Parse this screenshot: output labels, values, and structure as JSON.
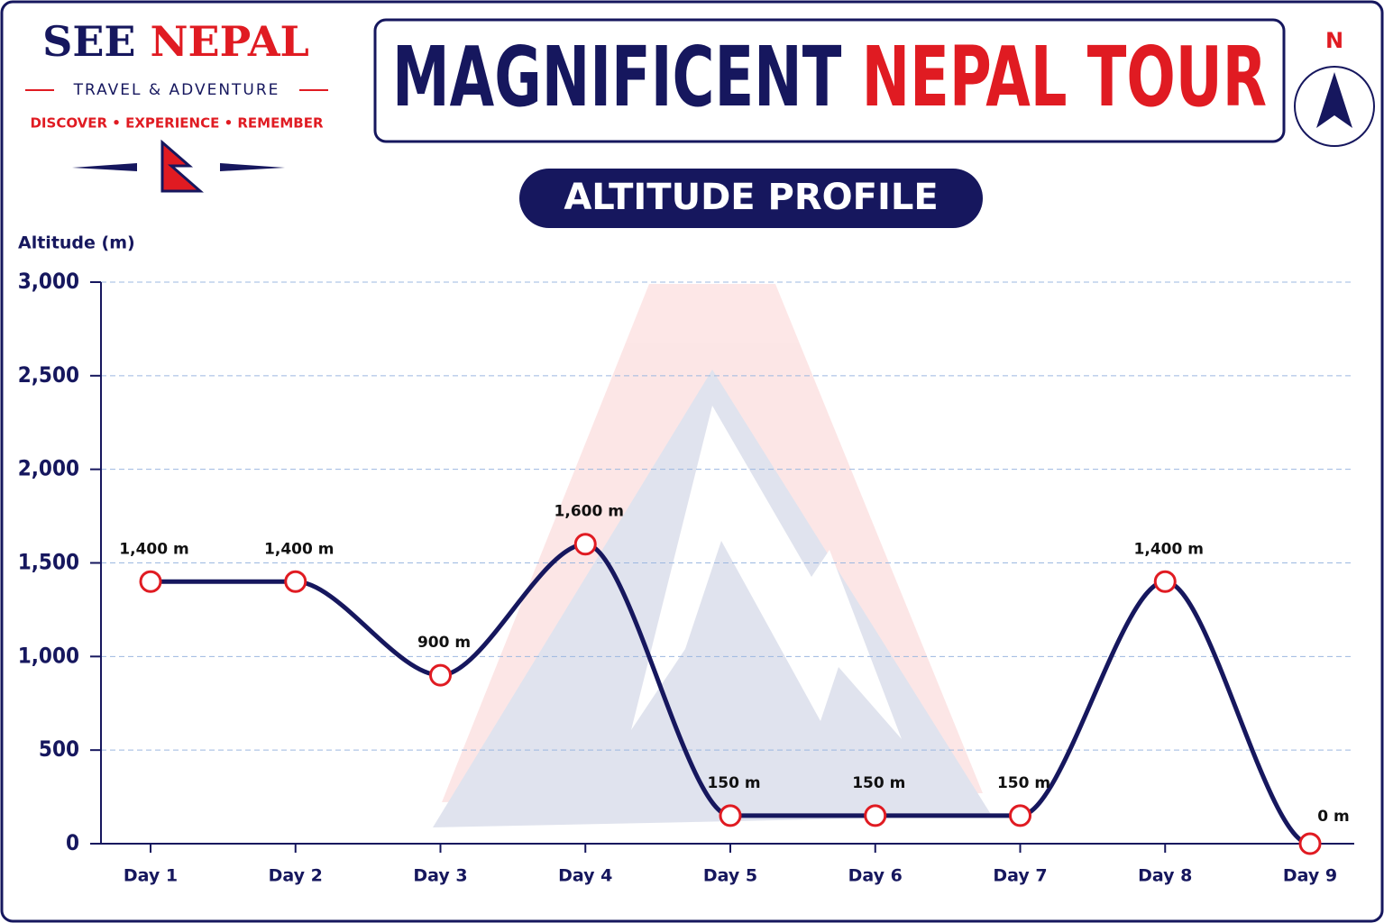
{
  "header": {
    "brand_1": "SEE",
    "brand_2": "NEPAL",
    "tagline": "TRAVEL & ADVENTURE",
    "motto": "DISCOVER • EXPERIENCE • REMEMBER",
    "title_1": "MAGNIFICENT",
    "title_2": "NEPAL TOUR",
    "north": "N"
  },
  "chart_data": {
    "type": "line",
    "title": "ALTITUDE PROFILE",
    "y_label": "Altitude (m)",
    "categories": [
      "Day 1",
      "Day 2",
      "Day 3",
      "Day 4",
      "Day 5",
      "Day 6",
      "Day 7",
      "Day 8",
      "Day 9"
    ],
    "values": [
      1400,
      1400,
      900,
      1600,
      150,
      150,
      150,
      1400,
      0
    ],
    "value_labels": [
      "1,400 m",
      "1,400 m",
      "900 m",
      "1,600 m",
      "150 m",
      "150 m",
      "150 m",
      "1,400 m",
      "0 m"
    ],
    "color": "#16175e",
    "marker_color": "#e01b22",
    "ylim": [
      0,
      3000
    ],
    "yticks": [
      0,
      500,
      {
        "value": 1000,
        "label": "1,000"
      },
      {
        "value": 1500,
        "label": "1,500"
      },
      {
        "value": 2000,
        "label": "2,000"
      },
      {
        "value": 2500,
        "label": "2,500"
      },
      {
        "value": 3000,
        "label": "3,000"
      }
    ],
    "grid": true
  }
}
